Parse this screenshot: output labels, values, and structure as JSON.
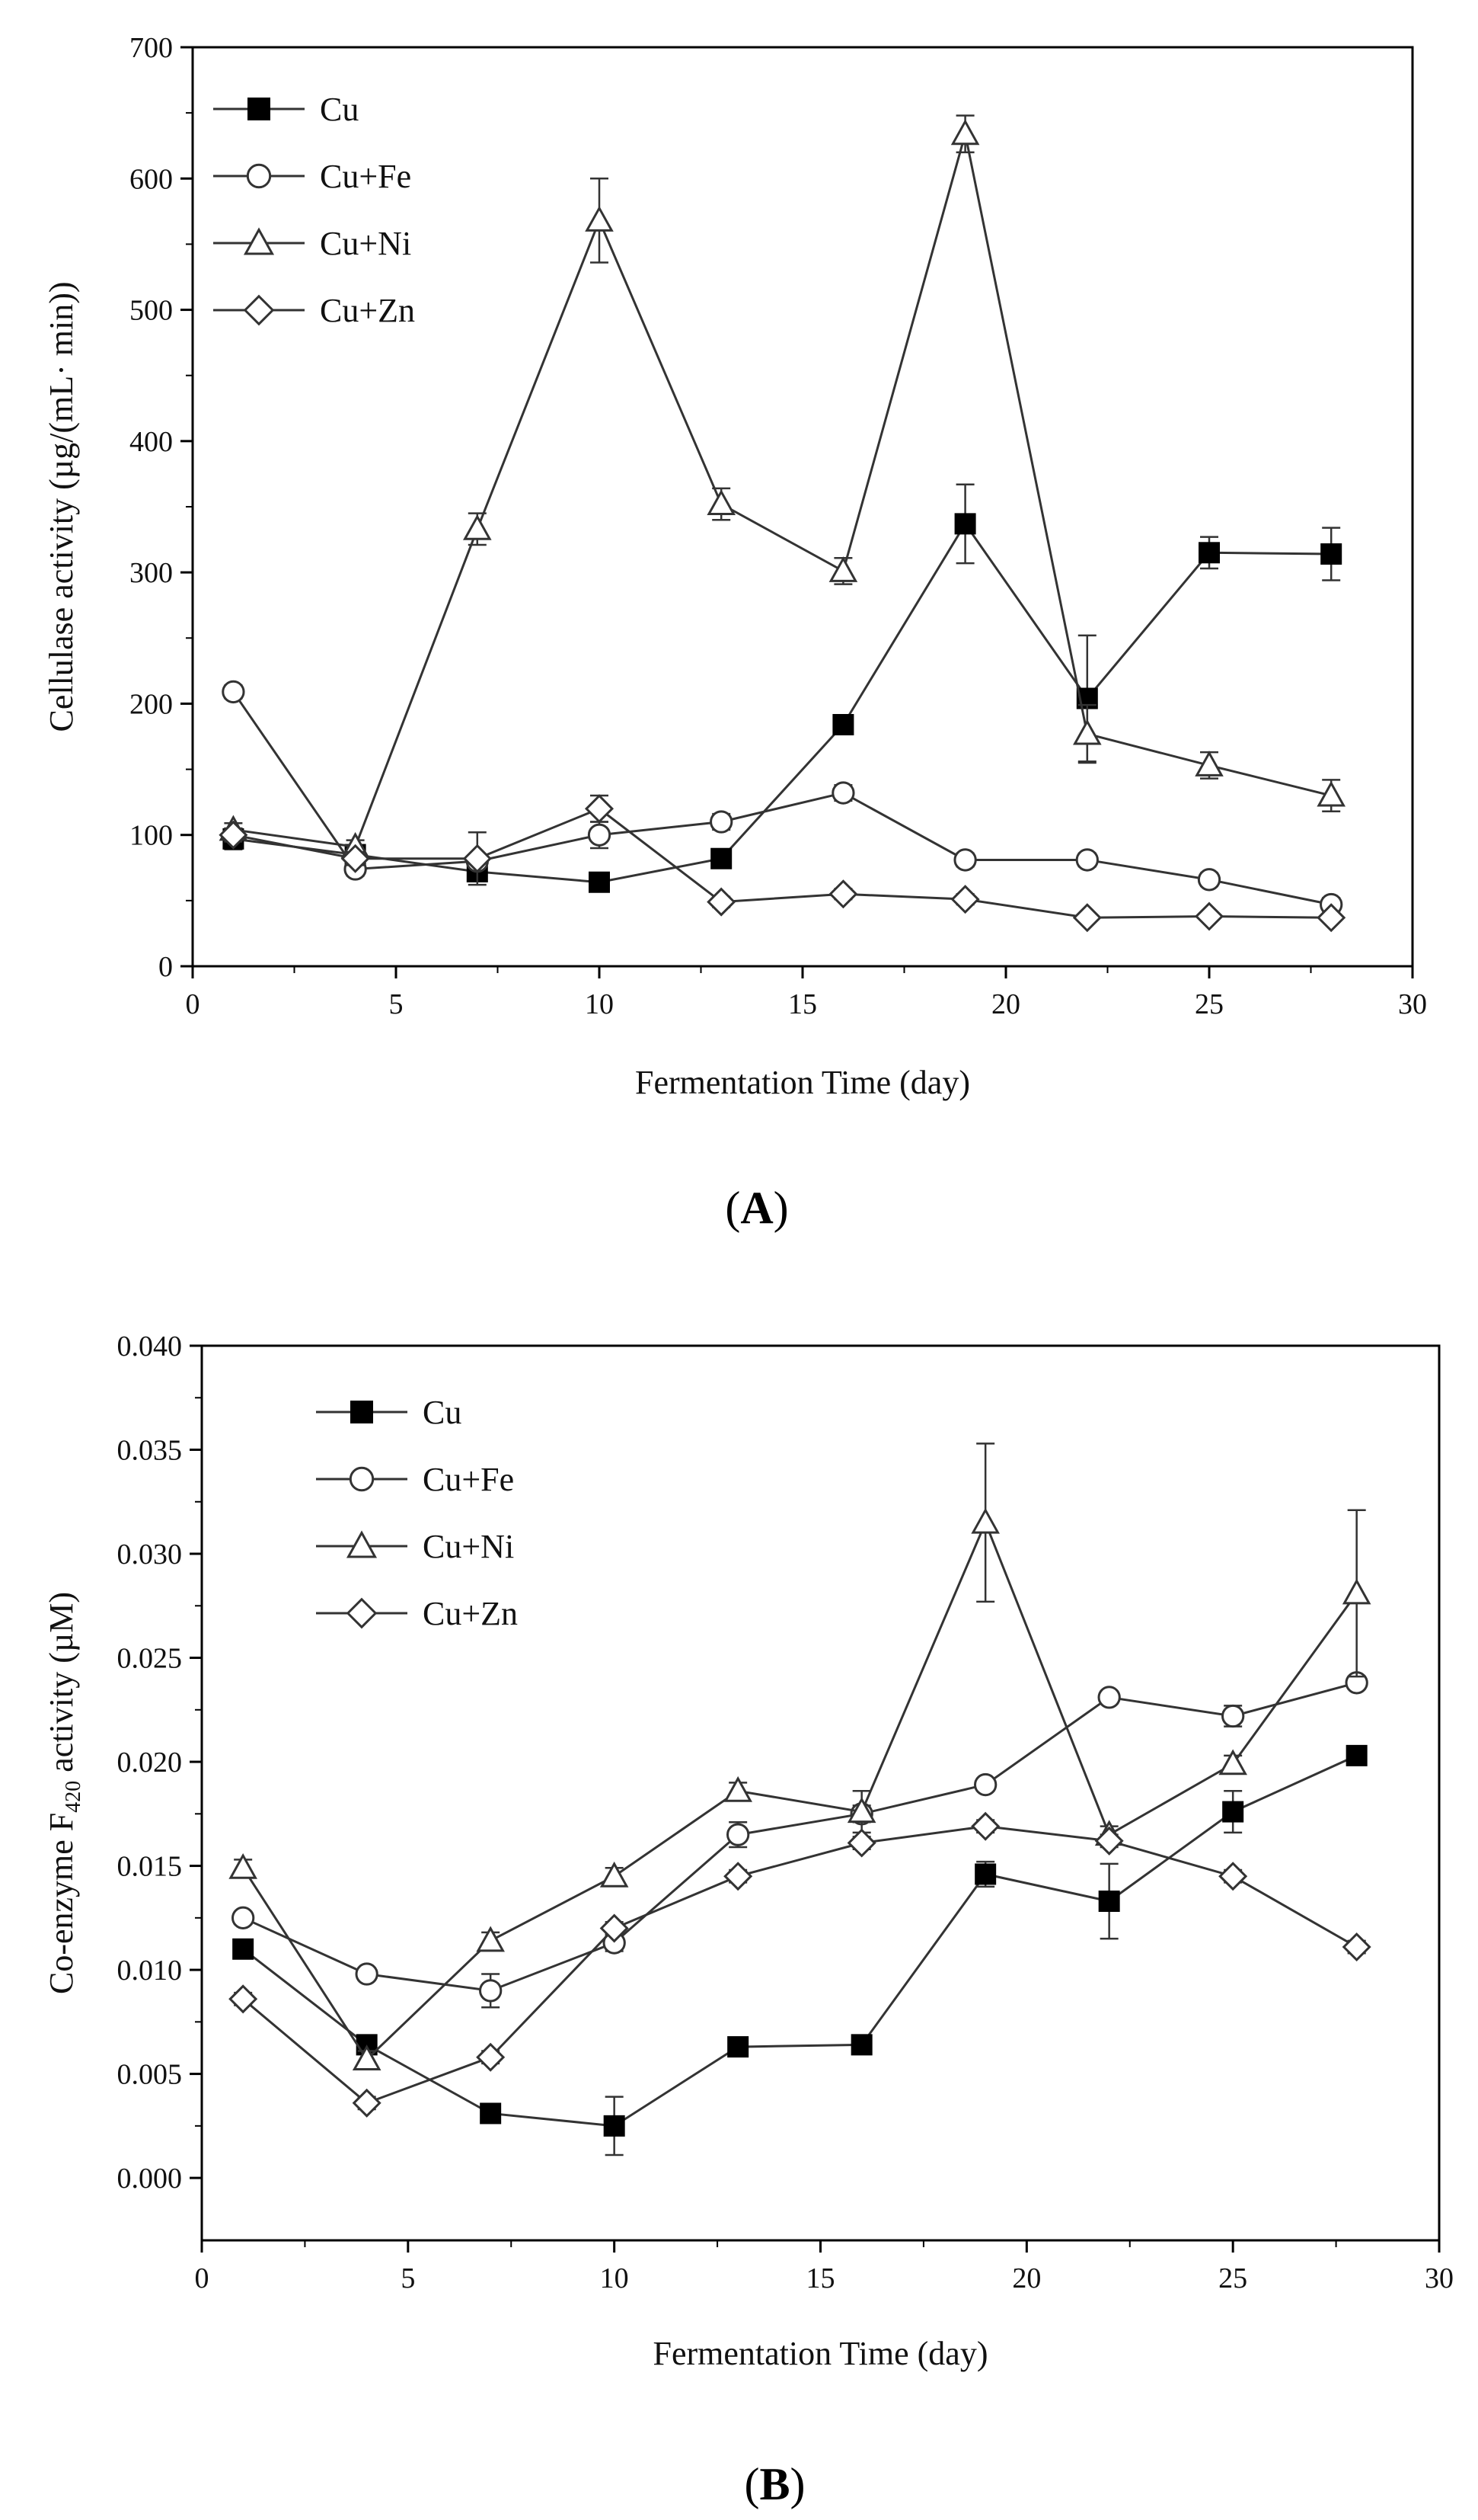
{
  "chart_data": [
    {
      "type": "line",
      "panel_label": "A",
      "xlabel": "Fermentation Time (day)",
      "ylabel": "Cellulase activity (µg/(mL· min))",
      "xlim": [
        0,
        30
      ],
      "ylim": [
        0,
        700
      ],
      "xticks": [
        "0",
        "5",
        "10",
        "15",
        "20",
        "25",
        "30"
      ],
      "yticks": [
        "0",
        "100",
        "200",
        "300",
        "400",
        "500",
        "600",
        "700"
      ],
      "legend_position": "top-left",
      "x": [
        1,
        4,
        7,
        10,
        13,
        16,
        19,
        22,
        25,
        28
      ],
      "series": [
        {
          "name": "Cu",
          "marker": "filled-square",
          "values": [
            97,
            85,
            72,
            64,
            82,
            184,
            337,
            204,
            315,
            314
          ],
          "errors": [
            8,
            5,
            5,
            4,
            6,
            6,
            30,
            48,
            12,
            20
          ]
        },
        {
          "name": "Cu+Fe",
          "marker": "open-circle",
          "values": [
            209,
            74,
            80,
            100,
            110,
            132,
            81,
            81,
            66,
            47
          ],
          "errors": [
            5,
            5,
            4,
            10,
            6,
            6,
            5,
            5,
            5,
            5
          ]
        },
        {
          "name": "Cu+Ni",
          "marker": "open-triangle",
          "values": [
            104,
            91,
            333,
            568,
            352,
            301,
            634,
            177,
            153,
            130
          ],
          "errors": [
            5,
            5,
            12,
            32,
            12,
            10,
            14,
            22,
            10,
            12
          ]
        },
        {
          "name": "Cu+Zn",
          "marker": "open-diamond",
          "values": [
            100,
            82,
            82,
            120,
            49,
            55,
            51,
            37,
            38,
            37
          ],
          "errors": [
            5,
            5,
            20,
            10,
            4,
            4,
            4,
            3,
            3,
            3
          ]
        }
      ]
    },
    {
      "type": "line",
      "panel_label": "B",
      "xlabel": "Fermentation Time (day)",
      "ylabel_main": "Co-enzyme F",
      "ylabel_sub": "420",
      "ylabel_tail": " activity (µM)",
      "xlim": [
        0,
        30
      ],
      "ylim": [
        -0.003,
        0.04
      ],
      "xticks": [
        "0",
        "5",
        "10",
        "15",
        "20",
        "25",
        "30"
      ],
      "yticks": [
        "0.000",
        "0.005",
        "0.010",
        "0.015",
        "0.020",
        "0.025",
        "0.030",
        "0.035",
        "0.040"
      ],
      "legend_position": "top-left",
      "x": [
        1,
        4,
        7,
        10,
        13,
        16,
        19,
        22,
        25,
        28
      ],
      "series": [
        {
          "name": "Cu",
          "marker": "filled-square",
          "values": [
            0.011,
            0.0064,
            0.0031,
            0.0025,
            0.0063,
            0.0064,
            0.0146,
            0.0133,
            0.0176,
            0.0203
          ],
          "errors": [
            0.0004,
            0.0003,
            0.0002,
            0.0014,
            0.0002,
            0.0002,
            0.0006,
            0.0018,
            0.001,
            0.0002
          ]
        },
        {
          "name": "Cu+Fe",
          "marker": "open-circle",
          "values": [
            0.0125,
            0.0098,
            0.009,
            0.0113,
            0.0165,
            0.0175,
            0.0189,
            0.0231,
            0.0222,
            0.0238
          ],
          "errors": [
            0.0003,
            0.0003,
            0.0008,
            0.0004,
            0.0006,
            0.0004,
            0.0003,
            0.0003,
            0.0005,
            0.0003
          ]
        },
        {
          "name": "Cu+Ni",
          "marker": "open-triangle",
          "values": [
            0.0149,
            0.0057,
            0.0114,
            0.0145,
            0.0186,
            0.0176,
            0.0315,
            0.0165,
            0.0199,
            0.0281
          ],
          "errors": [
            0.0004,
            0.0004,
            0.0004,
            0.0004,
            0.0004,
            0.001,
            0.0038,
            0.0004,
            0.0004,
            0.004
          ]
        },
        {
          "name": "Cu+Zn",
          "marker": "open-diamond",
          "values": [
            0.0086,
            0.0036,
            0.0058,
            0.012,
            0.0145,
            0.0161,
            0.0169,
            0.0162,
            0.0145,
            0.0111
          ],
          "errors": [
            0.0003,
            0.0003,
            0.0003,
            0.0003,
            0.0003,
            0.0003,
            0.0003,
            0.0003,
            0.0003,
            0.0003
          ]
        }
      ]
    }
  ]
}
